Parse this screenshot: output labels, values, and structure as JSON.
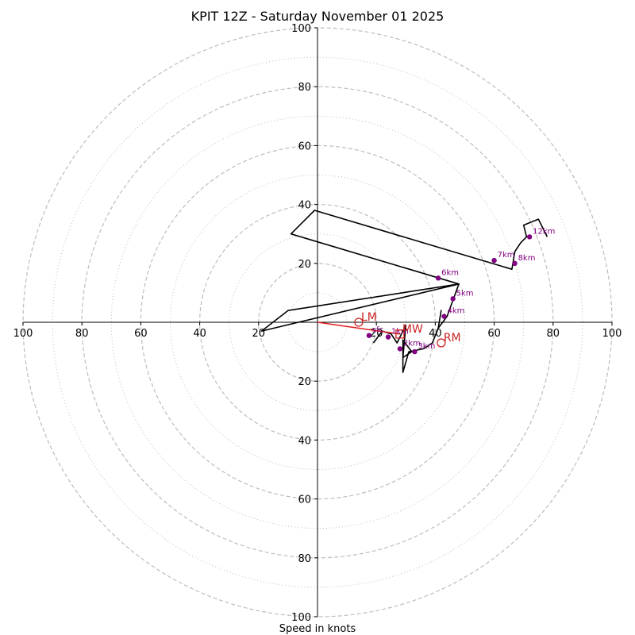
{
  "chart_data": {
    "type": "hodograph",
    "title": "KPIT 12Z - Saturday November 01 2025",
    "xlabel": "Speed in knots",
    "axis_limits": [
      -100,
      100
    ],
    "ring_major": [
      20,
      40,
      60,
      80,
      100
    ],
    "ring_minor": [
      10,
      30,
      50,
      70,
      90
    ],
    "tick_labels": {
      "left": [
        "100",
        "80",
        "60",
        "40",
        "20"
      ],
      "right": [
        "20",
        "40",
        "60",
        "80",
        "100"
      ],
      "top": [
        "100",
        "80",
        "60",
        "40",
        "20"
      ],
      "bottom": [
        "20",
        "40",
        "60",
        "80",
        "100"
      ]
    },
    "tick_values": [
      20,
      40,
      60,
      80,
      100
    ],
    "trace": [
      [
        19,
        -7
      ],
      [
        22,
        -3
      ],
      [
        25,
        -4
      ],
      [
        27,
        -7
      ],
      [
        30,
        -1
      ],
      [
        29,
        -12
      ],
      [
        32,
        -10
      ],
      [
        29,
        -6
      ],
      [
        29,
        -17
      ],
      [
        31,
        -10
      ],
      [
        36,
        -9
      ],
      [
        39,
        -7
      ],
      [
        41,
        -2
      ],
      [
        42,
        4
      ],
      [
        41,
        -2
      ],
      [
        44,
        2
      ],
      [
        48,
        13
      ],
      [
        -10,
        4
      ],
      [
        -19,
        -3
      ],
      [
        48,
        13
      ],
      [
        -9,
        30
      ],
      [
        -1,
        38
      ],
      [
        66,
        18
      ],
      [
        67,
        24
      ],
      [
        69,
        27
      ],
      [
        71,
        29
      ],
      [
        70,
        33
      ],
      [
        75,
        35
      ],
      [
        78,
        29
      ]
    ],
    "height_markers": [
      {
        "label": "1km",
        "u": 24,
        "v": -5
      },
      {
        "label": "2km",
        "u": 28,
        "v": -9
      },
      {
        "label": "3km",
        "u": 33,
        "v": -10
      },
      {
        "label": "4km",
        "u": 43,
        "v": 2
      },
      {
        "label": "5km",
        "u": 46,
        "v": 8
      },
      {
        "label": "6km",
        "u": 41,
        "v": 15
      },
      {
        "label": "7km",
        "u": 60,
        "v": 21
      },
      {
        "label": "8km",
        "u": 67,
        "v": 20
      },
      {
        "label": "12km",
        "u": 72,
        "v": 29
      },
      {
        "label": "sfc",
        "u": 17.5,
        "v": -4.5
      }
    ],
    "motion_markers": [
      {
        "label": "LM",
        "u": 14,
        "v": 0,
        "shape": "circle"
      },
      {
        "label": "RM",
        "u": 42,
        "v": -7,
        "shape": "circle"
      },
      {
        "label": "MW",
        "u": 28,
        "v": -4,
        "shape": "square"
      }
    ],
    "shear_vector": {
      "from": [
        0,
        0
      ],
      "to": [
        28,
        -4
      ]
    },
    "colors": {
      "trace": "#000000",
      "marker": "#800080",
      "motion": "#cc2222",
      "grid": "#bdbdbd"
    }
  }
}
